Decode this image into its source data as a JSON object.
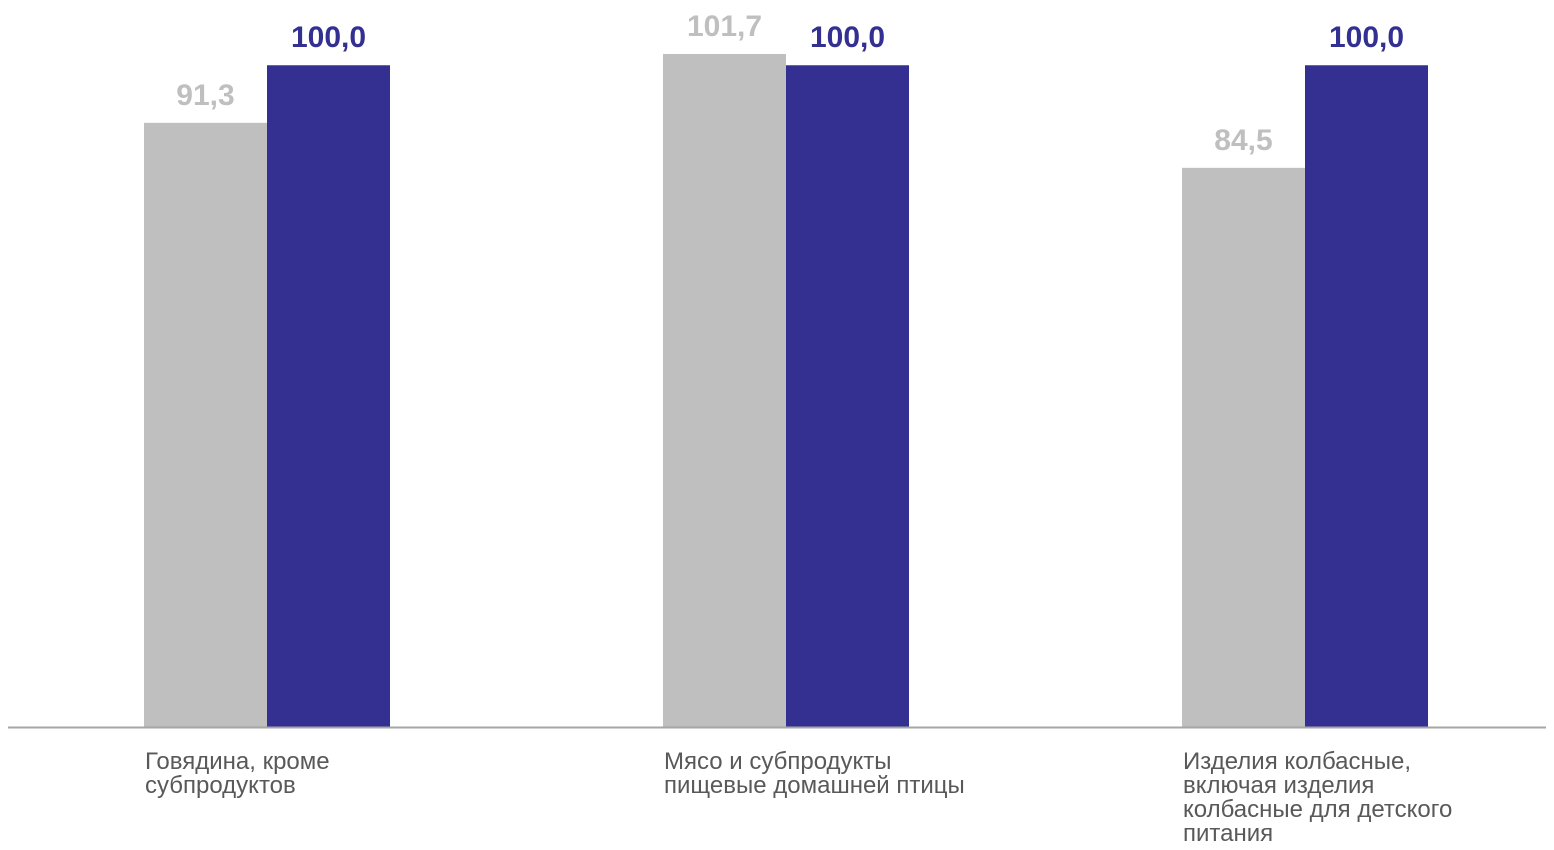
{
  "chart_data": {
    "type": "bar",
    "categories": [
      "Говядина, кроме\nсубпродуктов",
      "Мясо и субпродукты\nпищевые домашней птицы",
      "Изделия колбасные,\nвключая изделия\nколбасные для детского\nпитания"
    ],
    "series": [
      {
        "values": [
          91.3,
          101.7,
          84.5
        ],
        "labels": [
          "91,3",
          "101,7",
          "84,5"
        ],
        "color": "#BFBFBF",
        "label_color": "#BFBFBF"
      },
      {
        "values": [
          100.0,
          100.0,
          100.0
        ],
        "labels": [
          "100,0",
          "100,0",
          "100,0"
        ],
        "color": "#333092",
        "label_color": "#333092"
      }
    ],
    "title": "",
    "xlabel": "",
    "ylabel": "",
    "ylim": [
      0,
      101.7
    ],
    "grid": false,
    "legend": "none",
    "axis_color": "#A6A6A6"
  }
}
